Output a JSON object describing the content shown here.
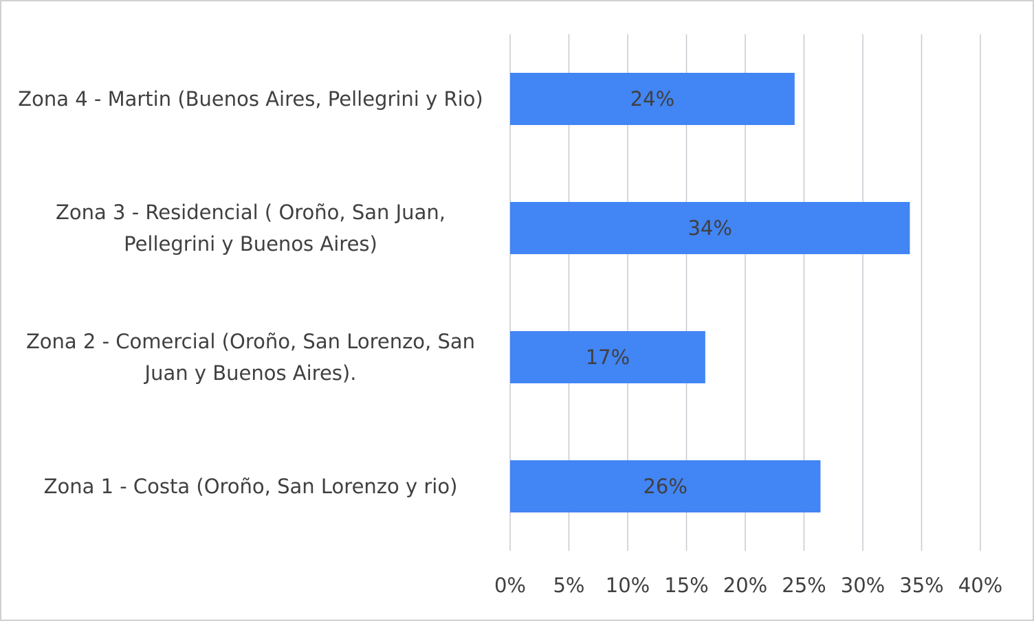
{
  "chart_data": {
    "type": "hbar",
    "categories": [
      "Zona 4 - Martin (Buenos Aires, Pellegrini y Rio)",
      "Zona 3 - Residencial ( Oroño, San Juan, Pellegrini y Buenos Aires)",
      "Zona 2 - Comercial (Oroño, San Lorenzo, San Juan y Buenos Aires).",
      "Zona 1 - Costa (Oroño, San Lorenzo y rio)"
    ],
    "values": [
      24.2,
      34.0,
      16.6,
      26.4
    ],
    "value_labels": [
      "24%",
      "34%",
      "17%",
      "26%"
    ],
    "color": "#4285f4",
    "xlim": [
      0,
      40
    ],
    "xticks": [
      {
        "value": 0,
        "label": "0%"
      },
      {
        "value": 5,
        "label": "5%"
      },
      {
        "value": 10,
        "label": "10%"
      },
      {
        "value": 15,
        "label": "15%"
      },
      {
        "value": 20,
        "label": "20%"
      },
      {
        "value": 25,
        "label": "25%"
      },
      {
        "value": 30,
        "label": "30%"
      },
      {
        "value": 35,
        "label": "35%"
      },
      {
        "value": 40,
        "label": "40%"
      }
    ],
    "grid": true
  }
}
